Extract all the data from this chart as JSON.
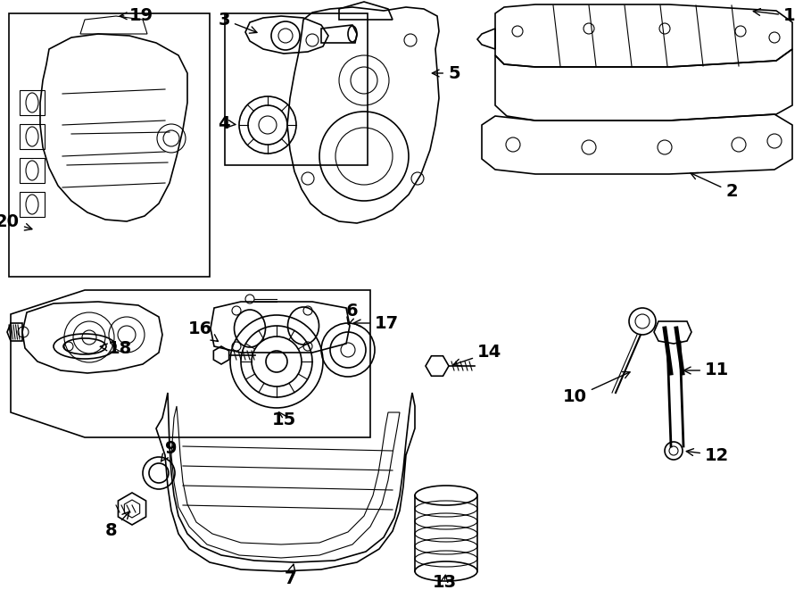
{
  "bg_color": "#ffffff",
  "line_color": "#000000",
  "fig_width": 9.0,
  "fig_height": 6.61,
  "dpi": 100,
  "font_size": 14
}
